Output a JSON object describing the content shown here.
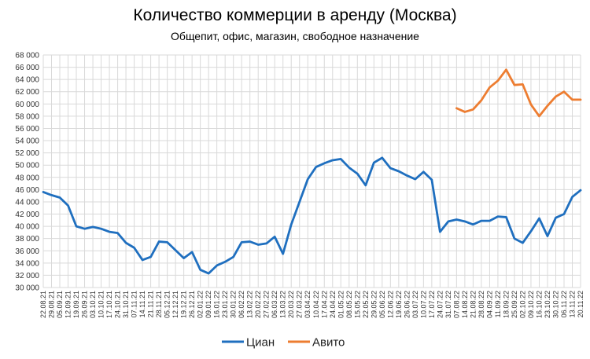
{
  "chart_data": {
    "type": "line",
    "title": "Количество коммерции в аренду (Москва)",
    "subtitle": "Общепит, офис, магазин, свободное назначение",
    "xlabel": "",
    "ylabel": "",
    "ylim": [
      30000,
      68000
    ],
    "yticks": [
      30000,
      32000,
      34000,
      36000,
      38000,
      40000,
      42000,
      44000,
      46000,
      48000,
      50000,
      52000,
      54000,
      56000,
      58000,
      60000,
      62000,
      64000,
      66000,
      68000
    ],
    "ytick_labels": [
      "30 000",
      "32 000",
      "34 000",
      "36 000",
      "38 000",
      "40 000",
      "42 000",
      "44 000",
      "46 000",
      "48 000",
      "50 000",
      "52 000",
      "54 000",
      "56 000",
      "58 000",
      "60 000",
      "62 000",
      "64 000",
      "66 000",
      "68 000"
    ],
    "grid": true,
    "legend_position": "bottom",
    "categories": [
      "22.08.21",
      "29.08.21",
      "05.09.21",
      "12.09.21",
      "19.09.21",
      "26.09.21",
      "03.10.21",
      "10.10.21",
      "17.10.21",
      "24.10.21",
      "31.10.21",
      "07.11.21",
      "14.11.21",
      "21.11.21",
      "28.11.21",
      "05.12.21",
      "12.12.21",
      "19.12.21",
      "26.12.21",
      "02.01.22",
      "09.01.22",
      "16.01.22",
      "23.01.22",
      "30.01.22",
      "06.02.22",
      "13.02.22",
      "20.02.22",
      "27.02.22",
      "06.03.22",
      "13.03.22",
      "20.03.22",
      "27.03.22",
      "03.04.22",
      "10.04.22",
      "17.04.22",
      "24.04.22",
      "01.05.22",
      "08.05.22",
      "15.05.22",
      "22.05.22",
      "29.05.22",
      "05.06.22",
      "12.06.22",
      "19.06.22",
      "26.06.22",
      "03.07.22",
      "10.07.22",
      "17.07.22",
      "24.07.22",
      "31.07.22",
      "07.08.22",
      "14.08.22",
      "21.08.22",
      "28.08.22",
      "04.09.22",
      "11.09.22",
      "18.09.22",
      "25.09.22",
      "02.10.22",
      "09.10.22",
      "16.10.22",
      "23.10.22",
      "30.10.22",
      "06.11.22",
      "13.11.22",
      "20.11.22"
    ],
    "series": [
      {
        "name": "Циан",
        "color": "#1f6fbf",
        "values": [
          45600,
          45100,
          44700,
          43400,
          40000,
          39600,
          39900,
          39600,
          39100,
          38900,
          37300,
          36500,
          34500,
          35000,
          37500,
          37400,
          36100,
          34800,
          35800,
          32900,
          32300,
          33600,
          34200,
          35000,
          37400,
          37500,
          37000,
          37200,
          38300,
          35500,
          40300,
          44000,
          47700,
          49700,
          50300,
          50800,
          51000,
          49600,
          48600,
          46700,
          50400,
          51200,
          49500,
          49000,
          48300,
          47700,
          48900,
          47600,
          39100,
          40800,
          41100,
          40800,
          40300,
          40900,
          40900,
          41600,
          41500,
          38000,
          37300,
          39200,
          41300,
          38400,
          41400,
          42000,
          44800,
          45900
        ]
      },
      {
        "name": "Авито",
        "color": "#ed7d31",
        "values": [
          null,
          null,
          null,
          null,
          null,
          null,
          null,
          null,
          null,
          null,
          null,
          null,
          null,
          null,
          null,
          null,
          null,
          null,
          null,
          null,
          null,
          null,
          null,
          null,
          null,
          null,
          null,
          null,
          null,
          null,
          null,
          null,
          null,
          null,
          null,
          null,
          null,
          null,
          null,
          null,
          null,
          null,
          null,
          null,
          null,
          null,
          null,
          null,
          null,
          null,
          59300,
          58700,
          59100,
          60600,
          62700,
          63800,
          65600,
          63100,
          63200,
          59900,
          58000,
          59700,
          61200,
          62000,
          60700,
          60700
        ]
      }
    ]
  }
}
